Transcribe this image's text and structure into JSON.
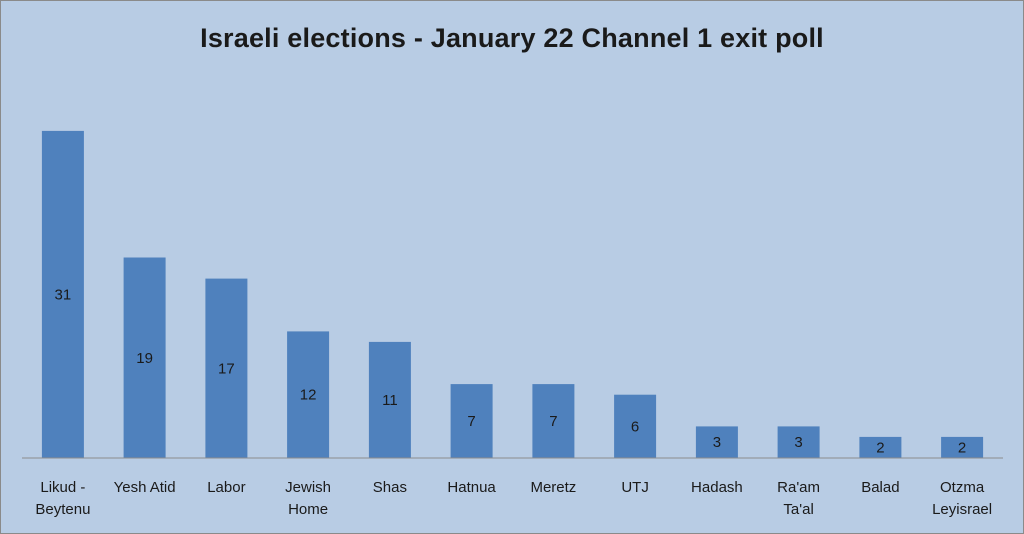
{
  "chart_data": {
    "type": "bar",
    "title": "Israeli elections - January 22 Channel 1 exit poll",
    "categories": [
      [
        "Likud -",
        "Beytenu"
      ],
      [
        "Yesh Atid"
      ],
      [
        "Labor"
      ],
      [
        "Jewish",
        "Home"
      ],
      [
        "Shas"
      ],
      [
        "Hatnua"
      ],
      [
        "Meretz"
      ],
      [
        "UTJ"
      ],
      [
        "Hadash"
      ],
      [
        "Ra'am",
        "Ta'al"
      ],
      [
        "Balad"
      ],
      [
        "Otzma",
        "Leyisrael"
      ]
    ],
    "values": [
      31,
      19,
      17,
      12,
      11,
      7,
      7,
      6,
      3,
      3,
      2,
      2
    ],
    "data_labels": true,
    "xlabel": "",
    "ylabel": "",
    "ylim": [
      0,
      32
    ],
    "grid": false,
    "legend": "none",
    "colors": {
      "bar": "#4f81bd",
      "background": "#b8cce4"
    }
  }
}
